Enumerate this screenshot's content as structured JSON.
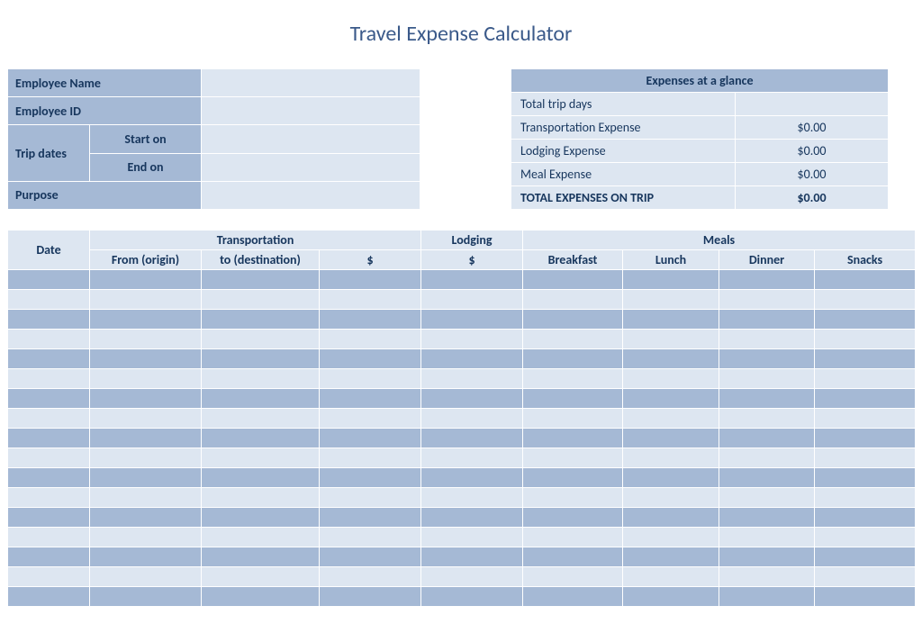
{
  "title": "Travel Expense Calculator",
  "colors": {
    "title_text": "#3b5a8a",
    "header_bg": "#a5b9d5",
    "row_light_bg": "#dde6f1",
    "row_dark_bg": "#a5b9d5",
    "border": "#ffffff",
    "text_dark": "#17365d"
  },
  "employee": {
    "name_label": "Employee Name",
    "name_value": "",
    "id_label": "Employee ID",
    "id_value": "",
    "trip_dates_label": "Trip dates",
    "start_label": "Start on",
    "start_value": "",
    "end_label": "End on",
    "end_value": "",
    "purpose_label": "Purpose",
    "purpose_value": ""
  },
  "summary": {
    "header": "Expenses at a glance",
    "rows": [
      {
        "label": "Total trip days",
        "value": "",
        "bold": false
      },
      {
        "label": "Transportation Expense",
        "value": "$0.00",
        "bold": false
      },
      {
        "label": "Lodging Expense",
        "value": "$0.00",
        "bold": false
      },
      {
        "label": "Meal Expense",
        "value": "$0.00",
        "bold": false
      },
      {
        "label": "TOTAL EXPENSES ON TRIP",
        "value": "$0.00",
        "bold": true
      }
    ]
  },
  "main": {
    "headers": {
      "date": "Date",
      "transportation": "Transportation",
      "lodging": "Lodging",
      "meals": "Meals",
      "from": "From (origin)",
      "to": "to (destination)",
      "trans_amount": "$",
      "lodging_amount": "$",
      "breakfast": "Breakfast",
      "lunch": "Lunch",
      "dinner": "Dinner",
      "snacks": "Snacks"
    },
    "row_count": 17,
    "rows": [
      {
        "date": "",
        "from": "",
        "to": "",
        "trans_amount": "",
        "lodging_amount": "",
        "breakfast": "",
        "lunch": "",
        "dinner": "",
        "snacks": ""
      },
      {
        "date": "",
        "from": "",
        "to": "",
        "trans_amount": "",
        "lodging_amount": "",
        "breakfast": "",
        "lunch": "",
        "dinner": "",
        "snacks": ""
      },
      {
        "date": "",
        "from": "",
        "to": "",
        "trans_amount": "",
        "lodging_amount": "",
        "breakfast": "",
        "lunch": "",
        "dinner": "",
        "snacks": ""
      },
      {
        "date": "",
        "from": "",
        "to": "",
        "trans_amount": "",
        "lodging_amount": "",
        "breakfast": "",
        "lunch": "",
        "dinner": "",
        "snacks": ""
      },
      {
        "date": "",
        "from": "",
        "to": "",
        "trans_amount": "",
        "lodging_amount": "",
        "breakfast": "",
        "lunch": "",
        "dinner": "",
        "snacks": ""
      },
      {
        "date": "",
        "from": "",
        "to": "",
        "trans_amount": "",
        "lodging_amount": "",
        "breakfast": "",
        "lunch": "",
        "dinner": "",
        "snacks": ""
      },
      {
        "date": "",
        "from": "",
        "to": "",
        "trans_amount": "",
        "lodging_amount": "",
        "breakfast": "",
        "lunch": "",
        "dinner": "",
        "snacks": ""
      },
      {
        "date": "",
        "from": "",
        "to": "",
        "trans_amount": "",
        "lodging_amount": "",
        "breakfast": "",
        "lunch": "",
        "dinner": "",
        "snacks": ""
      },
      {
        "date": "",
        "from": "",
        "to": "",
        "trans_amount": "",
        "lodging_amount": "",
        "breakfast": "",
        "lunch": "",
        "dinner": "",
        "snacks": ""
      },
      {
        "date": "",
        "from": "",
        "to": "",
        "trans_amount": "",
        "lodging_amount": "",
        "breakfast": "",
        "lunch": "",
        "dinner": "",
        "snacks": ""
      },
      {
        "date": "",
        "from": "",
        "to": "",
        "trans_amount": "",
        "lodging_amount": "",
        "breakfast": "",
        "lunch": "",
        "dinner": "",
        "snacks": ""
      },
      {
        "date": "",
        "from": "",
        "to": "",
        "trans_amount": "",
        "lodging_amount": "",
        "breakfast": "",
        "lunch": "",
        "dinner": "",
        "snacks": ""
      },
      {
        "date": "",
        "from": "",
        "to": "",
        "trans_amount": "",
        "lodging_amount": "",
        "breakfast": "",
        "lunch": "",
        "dinner": "",
        "snacks": ""
      },
      {
        "date": "",
        "from": "",
        "to": "",
        "trans_amount": "",
        "lodging_amount": "",
        "breakfast": "",
        "lunch": "",
        "dinner": "",
        "snacks": ""
      },
      {
        "date": "",
        "from": "",
        "to": "",
        "trans_amount": "",
        "lodging_amount": "",
        "breakfast": "",
        "lunch": "",
        "dinner": "",
        "snacks": ""
      },
      {
        "date": "",
        "from": "",
        "to": "",
        "trans_amount": "",
        "lodging_amount": "",
        "breakfast": "",
        "lunch": "",
        "dinner": "",
        "snacks": ""
      },
      {
        "date": "",
        "from": "",
        "to": "",
        "trans_amount": "",
        "lodging_amount": "",
        "breakfast": "",
        "lunch": "",
        "dinner": "",
        "snacks": ""
      }
    ]
  }
}
